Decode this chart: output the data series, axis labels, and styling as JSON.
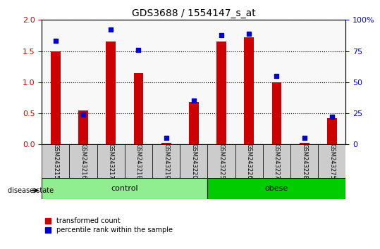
{
  "title": "GDS3688 / 1554147_s_at",
  "samples": [
    "GSM243215",
    "GSM243216",
    "GSM243217",
    "GSM243218",
    "GSM243219",
    "GSM243220",
    "GSM243225",
    "GSM243226",
    "GSM243227",
    "GSM243228",
    "GSM243275"
  ],
  "transformed_count": [
    1.5,
    0.55,
    1.65,
    1.15,
    0.03,
    0.68,
    1.65,
    1.72,
    1.0,
    0.03,
    0.42
  ],
  "percentile_rank": [
    83,
    24,
    92,
    76,
    5,
    35,
    88,
    89,
    55,
    5,
    22
  ],
  "groups": [
    {
      "label": "control",
      "start": 0,
      "end": 6,
      "color": "#90EE90"
    },
    {
      "label": "obese",
      "start": 6,
      "end": 11,
      "color": "#00CC00"
    }
  ],
  "bar_color": "#CC0000",
  "dot_color": "#0000CC",
  "ylim_left": [
    0,
    2
  ],
  "ylim_right": [
    0,
    100
  ],
  "yticks_left": [
    0,
    0.5,
    1.0,
    1.5,
    2.0
  ],
  "yticks_right": [
    0,
    25,
    50,
    75,
    100
  ],
  "ylabel_left_color": "#CC0000",
  "ylabel_right_color": "#0000CC",
  "bg_color": "#CCCCCC",
  "label_transformed": "transformed count",
  "label_percentile": "percentile rank within the sample",
  "disease_state_label": "disease state"
}
